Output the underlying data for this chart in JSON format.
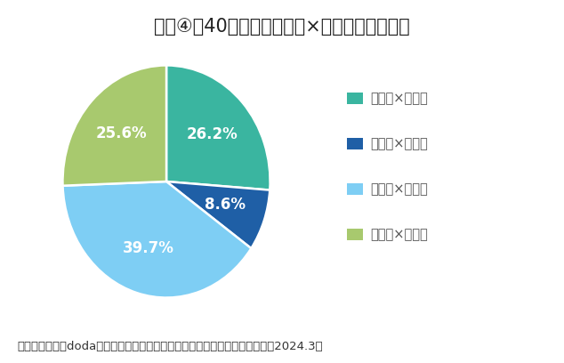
{
  "title": "【図④】40歳以上の異業種×異職種転職の割合",
  "values": [
    26.2,
    8.6,
    39.7,
    25.6
  ],
  "labels": [
    "同業種×同職種",
    "同業種×異職種",
    "異業種×同職種",
    "異業種×異職種"
  ],
  "pct_labels": [
    "26.2%",
    "8.6%",
    "39.7%",
    "25.6%"
  ],
  "colors": [
    "#3ab5a0",
    "#1f5fa6",
    "#7ecef4",
    "#a8c96e"
  ],
  "start_angle": 90,
  "footnote": "転職サービス「doda」、「ミドル層の異業種・異職種転職実態レポート」（2024.3）",
  "background_color": "#ffffff",
  "title_fontsize": 15,
  "legend_fontsize": 10.5,
  "pct_fontsize": 12,
  "footnote_fontsize": 9.5
}
